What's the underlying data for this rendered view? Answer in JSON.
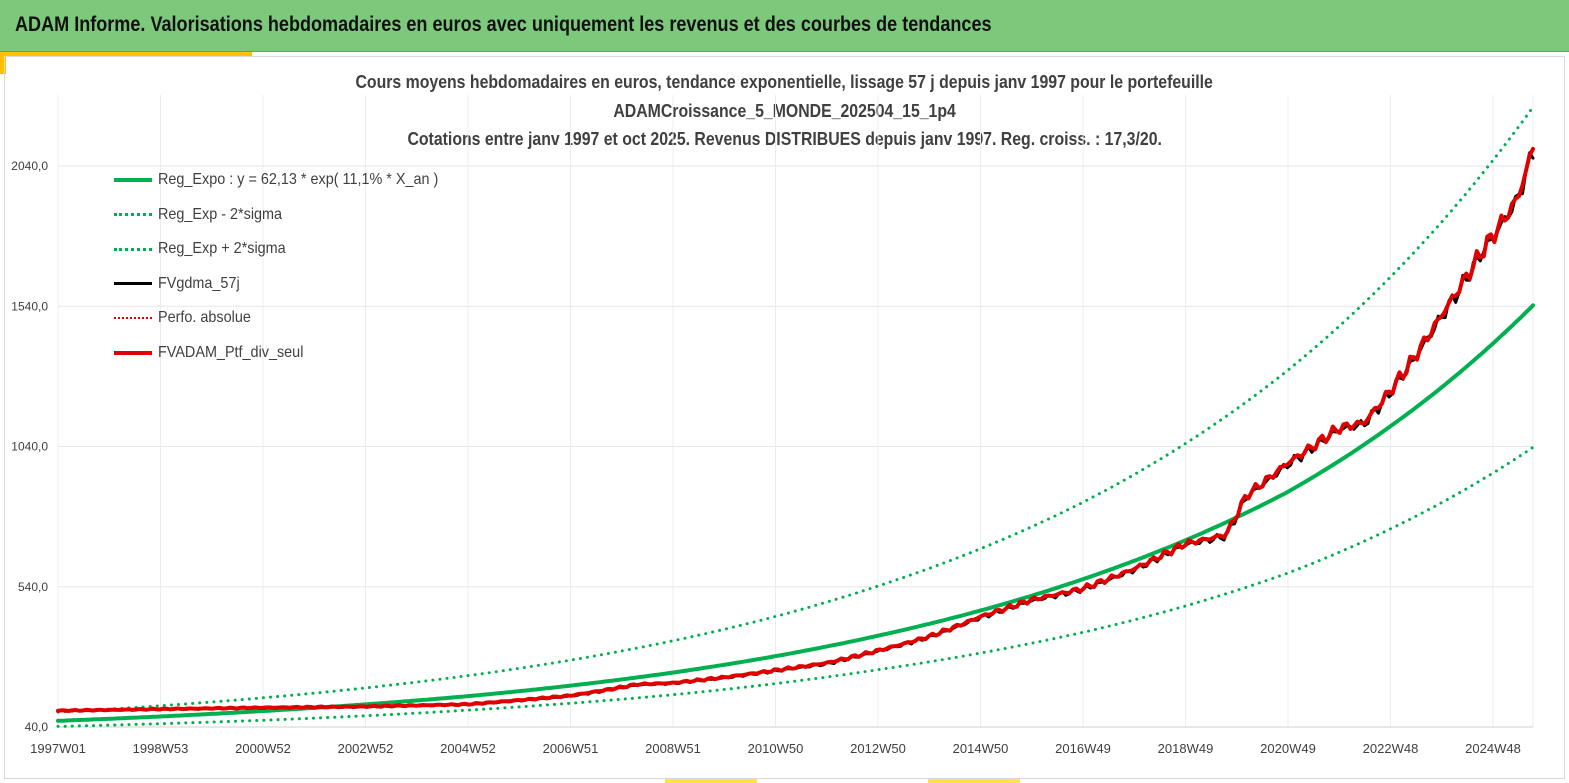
{
  "header": {
    "title": "ADAM Informe. Valorisations hebdomadaires en euros avec uniquement les revenus et des courbes de tendances"
  },
  "chart_data": {
    "type": "line",
    "title_lines": [
      "Cours moyens hebdomadaires  en euros, tendance exponentielle, lissage 57 j depuis janv 1997 pour le portefeuille",
      "ADAMCroissance_5_MONDE_202504_15_1p4",
      "Cotations  entre janv 1997 et oct 2025. Revenus DISTRIBUES depuis janv 1997. Reg. croiss. : 17,3/20."
    ],
    "xlabel": "",
    "ylabel": "",
    "ylim": [
      40,
      2240
    ],
    "yticks": [
      "40,0",
      "540,0",
      "1040,0",
      "1540,0",
      "2040,0"
    ],
    "yvalues": [
      40,
      540,
      1040,
      1540,
      2040
    ],
    "xticks": [
      "1997W01",
      "1998W53",
      "2000W52",
      "2002W52",
      "2004W52",
      "2006W51",
      "2008W51",
      "2010W50",
      "2012W50",
      "2014W50",
      "2016W49",
      "2018W49",
      "2020W49",
      "2022W48",
      "2024W48"
    ],
    "xrange_years": [
      1997.0,
      2025.8
    ],
    "grid": true,
    "legend_position": "top-left",
    "series": [
      {
        "name": "Reg_Expo : y = 62,13 * exp( 11,1% *  X_an )",
        "color": "#00b050",
        "style": "solid",
        "width": 4,
        "points": [
          [
            1997.0,
            62
          ],
          [
            2001.0,
            97
          ],
          [
            2005.0,
            150
          ],
          [
            2009.0,
            234
          ],
          [
            2013.0,
            365
          ],
          [
            2016.9,
            560
          ],
          [
            2021.0,
            877
          ],
          [
            2025.8,
            1543
          ]
        ]
      },
      {
        "name": "Reg_Exp - 2*sigma",
        "color": "#00b050",
        "style": "dotted",
        "width": 3,
        "points": [
          [
            1997.0,
            42
          ],
          [
            2001.0,
            64
          ],
          [
            2005.0,
            100
          ],
          [
            2009.0,
            155
          ],
          [
            2013.0,
            244
          ],
          [
            2017.0,
            377
          ],
          [
            2021.0,
            588
          ],
          [
            2025.8,
            1037
          ]
        ]
      },
      {
        "name": "Reg_Exp + 2*sigma",
        "color": "#00b050",
        "style": "dotted",
        "width": 3,
        "points": [
          [
            1997.0,
            93
          ],
          [
            2001.0,
            144
          ],
          [
            2005.0,
            223
          ],
          [
            2009.0,
            347
          ],
          [
            2013.0,
            542
          ],
          [
            2017.0,
            840
          ],
          [
            2021.0,
            1310
          ],
          [
            2025.8,
            2250
          ]
        ]
      },
      {
        "name": "FVgdma_57j",
        "color": "#000000",
        "style": "solid",
        "width": 3,
        "points": [
          [
            1997.0,
            98
          ],
          [
            1999.0,
            103
          ],
          [
            2001.0,
            108
          ],
          [
            2003.0,
            112
          ],
          [
            2005.0,
            120
          ],
          [
            2007.0,
            150
          ],
          [
            2008.3,
            190
          ],
          [
            2009.0,
            196
          ],
          [
            2010.0,
            215
          ],
          [
            2011.0,
            240
          ],
          [
            2012.0,
            265
          ],
          [
            2013.0,
            310
          ],
          [
            2014.0,
            360
          ],
          [
            2015.0,
            430
          ],
          [
            2016.0,
            490
          ],
          [
            2017.0,
            530
          ],
          [
            2018.0,
            600
          ],
          [
            2019.0,
            690
          ],
          [
            2019.8,
            720
          ],
          [
            2020.2,
            860
          ],
          [
            2021.0,
            975
          ],
          [
            2022.0,
            1100
          ],
          [
            2022.5,
            1120
          ],
          [
            2023.0,
            1230
          ],
          [
            2024.0,
            1500
          ],
          [
            2024.8,
            1730
          ],
          [
            2025.5,
            1920
          ],
          [
            2025.8,
            2095
          ]
        ]
      },
      {
        "name": "Perfo. absolue",
        "color": "#e00000",
        "style": "dotted",
        "width": 2,
        "points": [
          [
            1997.0,
            98
          ],
          [
            1999.0,
            104
          ],
          [
            2001.0,
            109
          ],
          [
            2003.0,
            113
          ],
          [
            2005.0,
            121
          ],
          [
            2007.0,
            152
          ],
          [
            2008.3,
            192
          ],
          [
            2009.0,
            197
          ],
          [
            2010.0,
            217
          ],
          [
            2011.0,
            242
          ],
          [
            2012.0,
            268
          ],
          [
            2013.0,
            312
          ],
          [
            2014.0,
            362
          ],
          [
            2015.0,
            433
          ],
          [
            2016.0,
            493
          ],
          [
            2017.0,
            533
          ],
          [
            2018.0,
            603
          ],
          [
            2019.0,
            693
          ],
          [
            2019.8,
            725
          ],
          [
            2020.2,
            865
          ],
          [
            2021.0,
            980
          ],
          [
            2022.0,
            1105
          ],
          [
            2022.5,
            1125
          ],
          [
            2023.0,
            1235
          ],
          [
            2024.0,
            1505
          ],
          [
            2024.8,
            1735
          ],
          [
            2025.5,
            1925
          ],
          [
            2025.8,
            2105
          ]
        ]
      },
      {
        "name": "FVADAM_Ptf_div_seul",
        "color": "#e00000",
        "style": "solid",
        "width": 4,
        "points": [
          [
            1997.0,
            98
          ],
          [
            1999.0,
            104
          ],
          [
            2001.0,
            109
          ],
          [
            2003.0,
            113
          ],
          [
            2005.0,
            121
          ],
          [
            2007.0,
            152
          ],
          [
            2008.3,
            192
          ],
          [
            2009.0,
            197
          ],
          [
            2010.0,
            217
          ],
          [
            2011.0,
            242
          ],
          [
            2012.0,
            268
          ],
          [
            2013.0,
            312
          ],
          [
            2014.0,
            362
          ],
          [
            2015.0,
            433
          ],
          [
            2016.0,
            493
          ],
          [
            2017.0,
            533
          ],
          [
            2018.0,
            603
          ],
          [
            2019.0,
            693
          ],
          [
            2019.8,
            725
          ],
          [
            2020.2,
            865
          ],
          [
            2021.0,
            980
          ],
          [
            2022.0,
            1105
          ],
          [
            2022.5,
            1125
          ],
          [
            2023.0,
            1235
          ],
          [
            2024.0,
            1505
          ],
          [
            2024.8,
            1735
          ],
          [
            2025.5,
            1925
          ],
          [
            2025.8,
            2105
          ]
        ]
      }
    ]
  }
}
